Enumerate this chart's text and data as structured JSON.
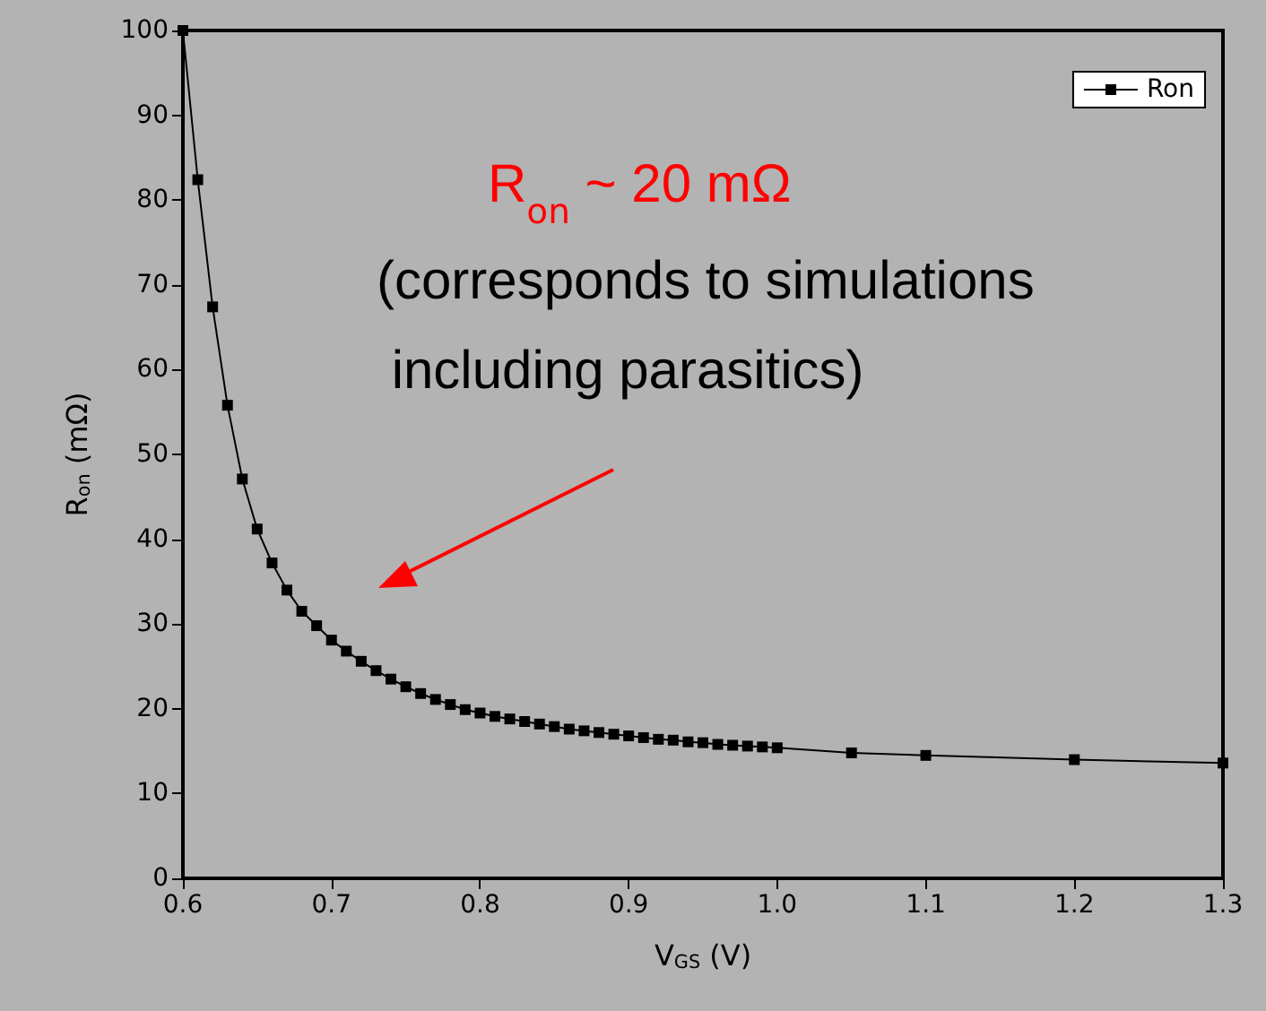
{
  "chart_data": {
    "type": "line",
    "xlabel": "V$_{GS}$ (V)",
    "ylabel": "R$_{on}$ (mΩ)",
    "x": [
      0.6,
      0.61,
      0.62,
      0.63,
      0.64,
      0.65,
      0.66,
      0.67,
      0.68,
      0.69,
      0.7,
      0.71,
      0.72,
      0.73,
      0.74,
      0.75,
      0.76,
      0.77,
      0.78,
      0.79,
      0.8,
      0.81,
      0.82,
      0.83,
      0.84,
      0.85,
      0.86,
      0.87,
      0.88,
      0.89,
      0.9,
      0.91,
      0.92,
      0.93,
      0.94,
      0.95,
      0.96,
      0.97,
      0.98,
      0.99,
      1.0,
      1.05,
      1.1,
      1.2,
      1.3
    ],
    "series": [
      {
        "name": "Ron",
        "color": "#000000",
        "values": [
          100,
          82.4,
          67.4,
          55.8,
          47.1,
          41.2,
          37.2,
          34.0,
          31.5,
          29.8,
          28.1,
          26.8,
          25.6,
          24.5,
          23.5,
          22.6,
          21.8,
          21.1,
          20.5,
          19.9,
          19.5,
          19.1,
          18.8,
          18.5,
          18.2,
          17.9,
          17.6,
          17.4,
          17.2,
          17.0,
          16.8,
          16.6,
          16.4,
          16.3,
          16.1,
          16.0,
          15.8,
          15.7,
          15.6,
          15.5,
          15.4,
          14.8,
          14.5,
          14.0,
          13.6
        ]
      }
    ],
    "xlim": [
      0.6,
      1.3
    ],
    "xticks": [
      0.6,
      0.7,
      0.8,
      0.9,
      {
        "value": 1,
        "label": "1.0"
      },
      1.1,
      1.2,
      1.3
    ],
    "ylim": [
      0,
      100
    ],
    "yticks": [
      0,
      10,
      20,
      30,
      40,
      50,
      60,
      70,
      80,
      90,
      100
    ],
    "annotations": [
      "R$_{on}$ ~ 20 mΩ",
      "(corresponds to simulations including parasitics)"
    ],
    "legend": "top right",
    "marker": "square",
    "line_style": "solid",
    "grid": false
  }
}
